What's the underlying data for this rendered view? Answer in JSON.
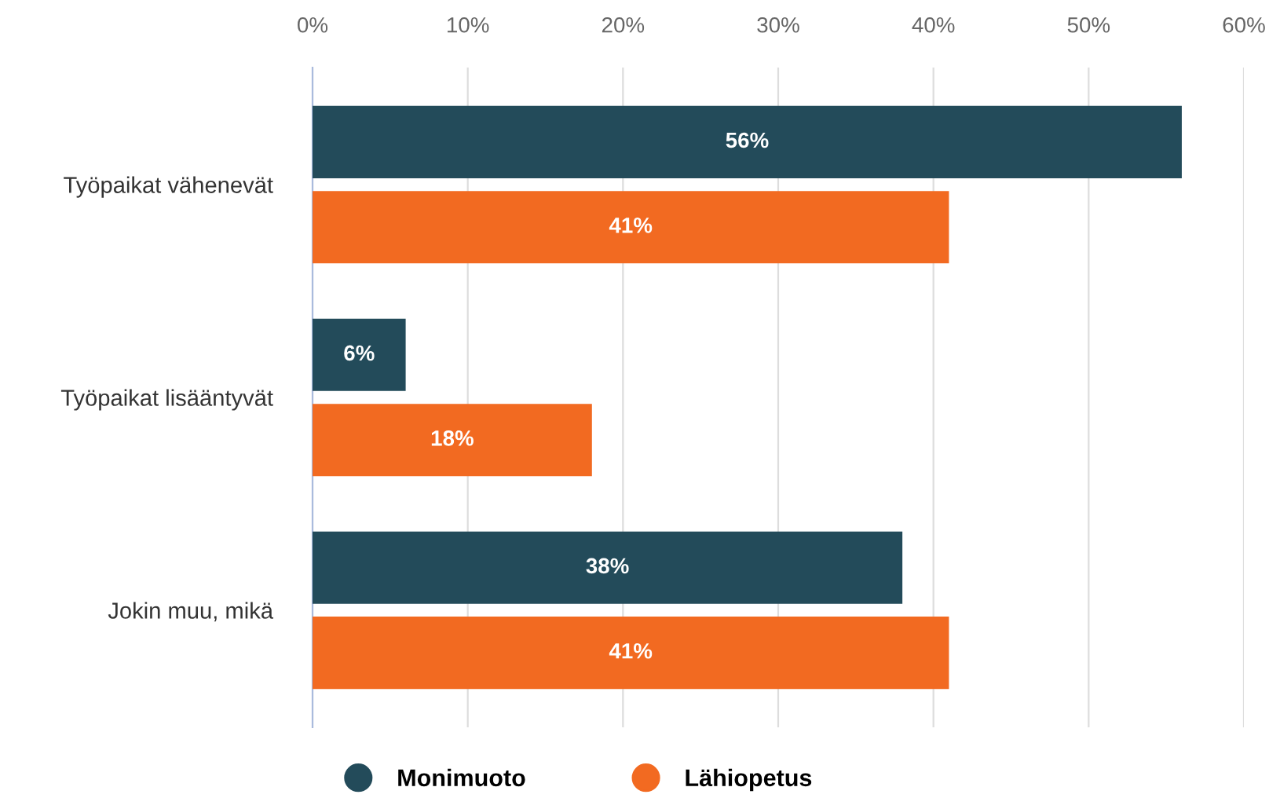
{
  "chart_data": {
    "type": "bar",
    "orientation": "horizontal",
    "categories": [
      "Työpaikat vähenevät",
      "Työpaikat lisääntyvät",
      "Jokin muu, mikä"
    ],
    "series": [
      {
        "name": "Monimuoto",
        "color": "#234b5a",
        "values": [
          56,
          6,
          38
        ],
        "value_labels": [
          "56%",
          "6%",
          "38%"
        ]
      },
      {
        "name": "Lähiopetus",
        "color": "#f26a21",
        "values": [
          41,
          18,
          41
        ],
        "value_labels": [
          "41%",
          "18%",
          "41%"
        ]
      }
    ],
    "xlim": [
      0,
      60
    ],
    "xticks": [
      {
        "value": 0,
        "label": "0%"
      },
      {
        "value": 10,
        "label": "10%"
      },
      {
        "value": 20,
        "label": "20%"
      },
      {
        "value": 30,
        "label": "30%"
      },
      {
        "value": 40,
        "label": "40%"
      },
      {
        "value": 50,
        "label": "50%"
      },
      {
        "value": 60,
        "label": "60%"
      }
    ],
    "grid": "x",
    "legend": "bottom"
  }
}
